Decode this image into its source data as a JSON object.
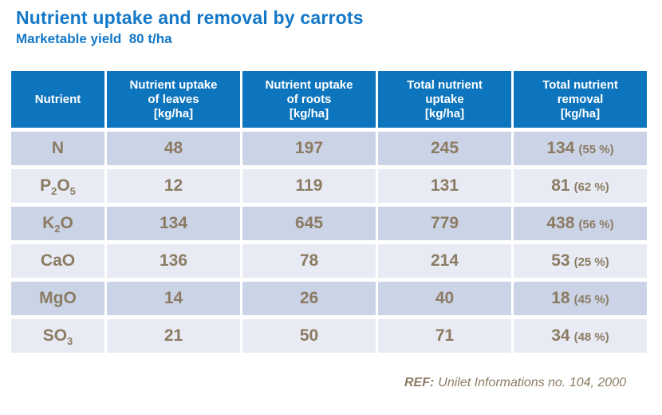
{
  "title": "Nutrient uptake and removal by carrots",
  "subtitle": "Marketable yield  80 t/ha",
  "colors": {
    "title_blue": "#1478C8",
    "header_blue": "#0D75BE",
    "row_dark": "#CBD4E7",
    "row_light": "#E8EBF3",
    "text_brown": "#8C7B63"
  },
  "table": {
    "headers": [
      "Nutrient",
      "Nutrient uptake\nof leaves\n[kg/ha]",
      "Nutrient uptake\nof roots\n[kg/ha]",
      "Total nutrient\nuptake\n[kg/ha]",
      "Total nutrient\nremoval\n[kg/ha]"
    ],
    "rows": [
      {
        "nutrient": "N",
        "leaves": "48",
        "roots": "197",
        "total": "245",
        "removal_value": "134",
        "removal_pct": "(55 %)"
      },
      {
        "nutrient": "P~2~O~5~",
        "leaves": "12",
        "roots": "119",
        "total": "131",
        "removal_value": "81",
        "removal_pct": "(62 %)"
      },
      {
        "nutrient": "K~2~O",
        "leaves": "134",
        "roots": "645",
        "total": "779",
        "removal_value": "438",
        "removal_pct": "(56 %)"
      },
      {
        "nutrient": "CaO",
        "leaves": "136",
        "roots": "78",
        "total": "214",
        "removal_value": "53",
        "removal_pct": "(25 %)"
      },
      {
        "nutrient": "MgO",
        "leaves": "14",
        "roots": "26",
        "total": "40",
        "removal_value": "18",
        "removal_pct": "(45 %)"
      },
      {
        "nutrient": "SO~3~",
        "leaves": "21",
        "roots": "50",
        "total": "71",
        "removal_value": "34",
        "removal_pct": "(48 %)"
      }
    ]
  },
  "footer": {
    "ref_label": "REF:",
    "ref_text": "Unilet Informations no. 104, 2000"
  }
}
